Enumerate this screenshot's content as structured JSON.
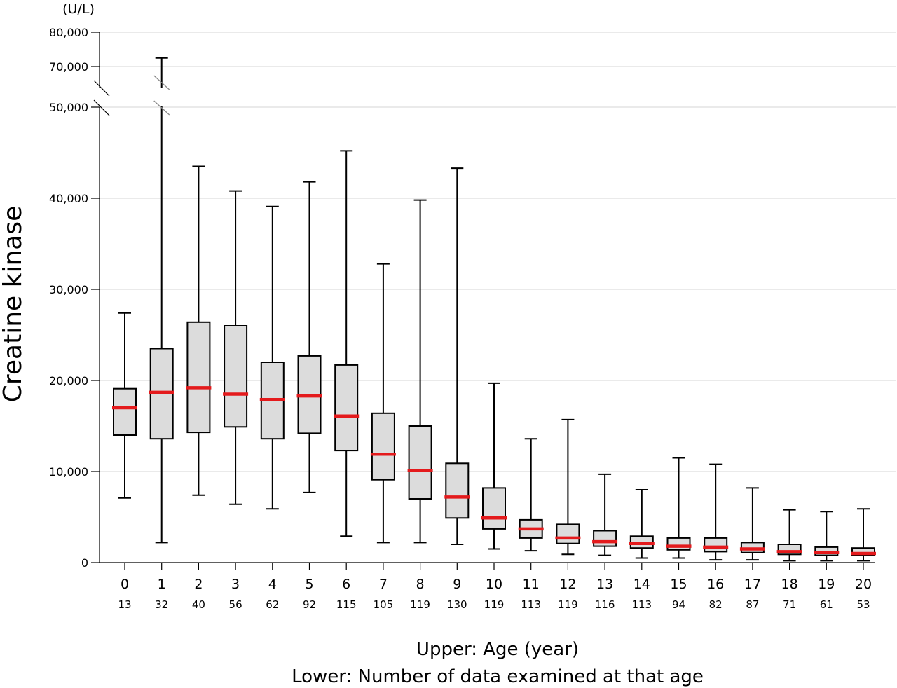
{
  "chart_data": {
    "type": "box",
    "unit": "(U/L)",
    "ylabel": "Creatine kinase",
    "xlabel_lines": [
      "Upper: Age (year)",
      "Lower: Number of data examined at that age"
    ],
    "yticks": [
      0,
      10000,
      20000,
      30000,
      40000,
      50000,
      70000,
      80000
    ],
    "ytick_labels": [
      "0",
      "10,000",
      "20,000",
      "30,000",
      "40,000",
      "50,000",
      "70,000",
      "80,000"
    ],
    "axis_break": [
      50000,
      70000
    ],
    "grid": true,
    "colors": {
      "box_fill": "#dcdcdc",
      "median": "#e41a1c",
      "grid": "#d4d4d4",
      "axis": "#000000"
    },
    "categories": [
      "0",
      "1",
      "2",
      "3",
      "4",
      "5",
      "6",
      "7",
      "8",
      "9",
      "10",
      "11",
      "12",
      "13",
      "14",
      "15",
      "16",
      "17",
      "18",
      "19",
      "20"
    ],
    "counts": [
      "13",
      "32",
      "40",
      "56",
      "62",
      "92",
      "115",
      "105",
      "119",
      "130",
      "119",
      "113",
      "119",
      "116",
      "113",
      "94",
      "82",
      "87",
      "71",
      "61",
      "53"
    ],
    "boxes": [
      {
        "min": 7100,
        "q1": 14000,
        "median": 17000,
        "q3": 19100,
        "max": 27400
      },
      {
        "min": 2200,
        "q1": 13600,
        "median": 18700,
        "q3": 23500,
        "max": 72500
      },
      {
        "min": 7400,
        "q1": 14300,
        "median": 19200,
        "q3": 26400,
        "max": 43500
      },
      {
        "min": 6400,
        "q1": 14900,
        "median": 18500,
        "q3": 26000,
        "max": 40800
      },
      {
        "min": 5900,
        "q1": 13600,
        "median": 17900,
        "q3": 22000,
        "max": 39100
      },
      {
        "min": 7700,
        "q1": 14200,
        "median": 18300,
        "q3": 22700,
        "max": 41800
      },
      {
        "min": 2900,
        "q1": 12300,
        "median": 16100,
        "q3": 21700,
        "max": 45200
      },
      {
        "min": 2200,
        "q1": 9100,
        "median": 11900,
        "q3": 16400,
        "max": 32800
      },
      {
        "min": 2200,
        "q1": 7000,
        "median": 10100,
        "q3": 15000,
        "max": 39800
      },
      {
        "min": 2000,
        "q1": 4900,
        "median": 7200,
        "q3": 10900,
        "max": 43300
      },
      {
        "min": 1500,
        "q1": 3700,
        "median": 4900,
        "q3": 8200,
        "max": 19700
      },
      {
        "min": 1300,
        "q1": 2700,
        "median": 3700,
        "q3": 4700,
        "max": 13600
      },
      {
        "min": 900,
        "q1": 2100,
        "median": 2700,
        "q3": 4200,
        "max": 15700
      },
      {
        "min": 800,
        "q1": 1800,
        "median": 2300,
        "q3": 3500,
        "max": 9700
      },
      {
        "min": 500,
        "q1": 1600,
        "median": 2100,
        "q3": 2900,
        "max": 8000
      },
      {
        "min": 500,
        "q1": 1400,
        "median": 1800,
        "q3": 2700,
        "max": 11500
      },
      {
        "min": 300,
        "q1": 1200,
        "median": 1700,
        "q3": 2700,
        "max": 10800
      },
      {
        "min": 300,
        "q1": 1100,
        "median": 1500,
        "q3": 2200,
        "max": 8200
      },
      {
        "min": 200,
        "q1": 900,
        "median": 1200,
        "q3": 2000,
        "max": 5800
      },
      {
        "min": 200,
        "q1": 800,
        "median": 1100,
        "q3": 1700,
        "max": 5600
      },
      {
        "min": 200,
        "q1": 800,
        "median": 1000,
        "q3": 1600,
        "max": 5900
      }
    ]
  }
}
